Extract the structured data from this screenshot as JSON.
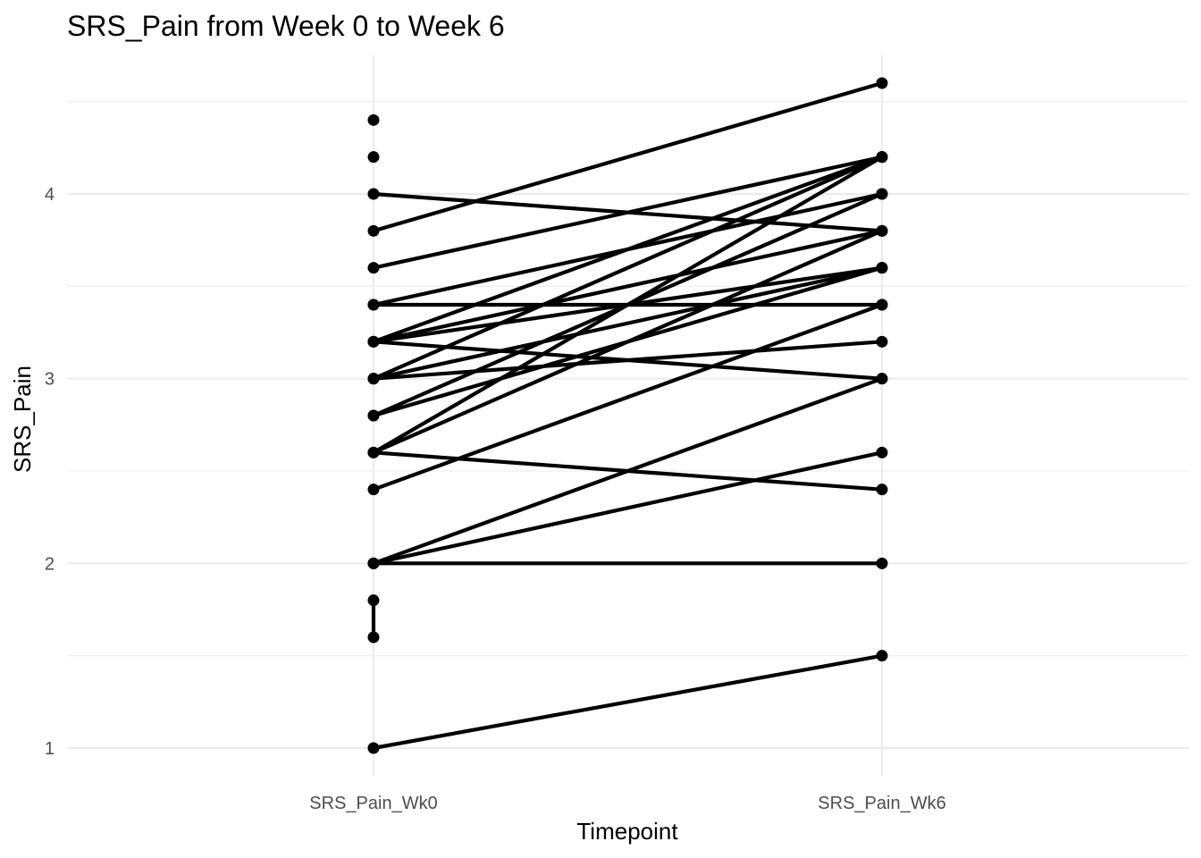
{
  "chart_data": {
    "type": "line",
    "title": "SRS_Pain from Week 0 to Week 6",
    "xlabel": "Timepoint",
    "ylabel": "SRS_Pain",
    "categories": [
      "SRS_Pain_Wk0",
      "SRS_Pain_Wk6"
    ],
    "y_ticks": [
      "1",
      "2",
      "3",
      "4"
    ],
    "ylim": [
      0.85,
      4.75
    ],
    "grid": true,
    "legend": "none",
    "line_color": "#000000",
    "series": [
      {
        "values": [
          1.0,
          1.5
        ]
      },
      {
        "values": [
          2.0,
          2.0
        ]
      },
      {
        "values": [
          2.0,
          2.6
        ]
      },
      {
        "values": [
          2.0,
          3.0
        ]
      },
      {
        "values": [
          2.4,
          3.4
        ]
      },
      {
        "values": [
          2.6,
          2.4
        ]
      },
      {
        "values": [
          2.6,
          4.2
        ]
      },
      {
        "values": [
          2.6,
          3.8
        ]
      },
      {
        "values": [
          2.8,
          3.6
        ]
      },
      {
        "values": [
          2.8,
          4.0
        ]
      },
      {
        "values": [
          3.0,
          3.2
        ]
      },
      {
        "values": [
          3.0,
          4.2
        ]
      },
      {
        "values": [
          3.0,
          3.6
        ]
      },
      {
        "values": [
          3.2,
          3.0
        ]
      },
      {
        "values": [
          3.2,
          4.2
        ]
      },
      {
        "values": [
          3.2,
          3.6
        ]
      },
      {
        "values": [
          3.4,
          3.4
        ]
      },
      {
        "values": [
          3.2,
          3.8
        ]
      },
      {
        "values": [
          3.4,
          4.0
        ]
      },
      {
        "values": [
          3.6,
          4.2
        ]
      },
      {
        "values": [
          3.8,
          4.6
        ]
      },
      {
        "values": [
          4.0,
          3.8
        ]
      }
    ],
    "wk0_only_points": [
      4.4,
      4.2,
      1.8,
      1.6
    ],
    "within_timepoint_segments": [
      {
        "category": "SRS_Pain_Wk0",
        "from": 1.6,
        "to": 1.8
      }
    ]
  }
}
